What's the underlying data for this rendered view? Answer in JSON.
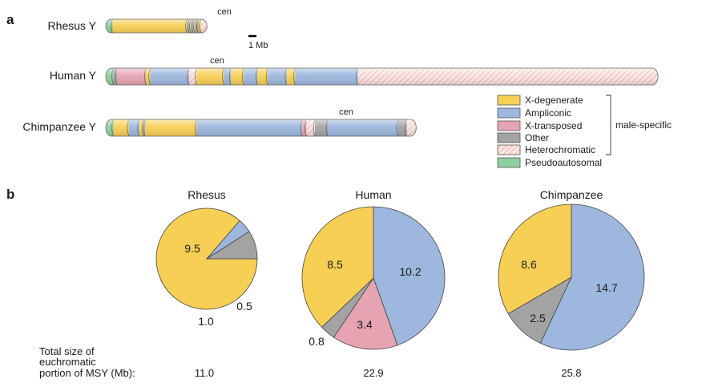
{
  "panel_labels": {
    "a": "a",
    "b": "b"
  },
  "chromosomes": [
    {
      "id": "rhesus",
      "label": "Rhesus Y",
      "cen_label": "cen",
      "segments": [
        {
          "type": "pseudoautosomal",
          "mb": 0.8
        },
        {
          "type": "x-degenerate",
          "mb": 8.7
        },
        {
          "type": "ampliconic",
          "mb": 0.25
        },
        {
          "type": "x-degenerate",
          "mb": 0.2
        },
        {
          "type": "ampliconic",
          "mb": 0.25
        },
        {
          "type": "x-degenerate",
          "mb": 0.2
        },
        {
          "type": "other",
          "mb": 0.4
        },
        {
          "type": "x-degenerate",
          "mb": 0.3
        },
        {
          "type": "heterochromatic",
          "mb": 0.7
        }
      ]
    },
    {
      "id": "human",
      "label": "Human Y",
      "cen_label": "cen",
      "segments": [
        {
          "type": "pseudoautosomal",
          "mb": 0.9
        },
        {
          "type": "other",
          "mb": 0.4
        },
        {
          "type": "x-transposed",
          "mb": 3.4
        },
        {
          "type": "x-degenerate",
          "mb": 0.5
        },
        {
          "type": "ampliconic",
          "mb": 4.5
        },
        {
          "type": "heterochromatic",
          "mb": 0.9
        },
        {
          "type": "x-degenerate",
          "mb": 3.2
        },
        {
          "type": "ampliconic",
          "mb": 0.8
        },
        {
          "type": "x-degenerate",
          "mb": 1.5
        },
        {
          "type": "ampliconic",
          "mb": 1.6
        },
        {
          "type": "x-degenerate",
          "mb": 1.2
        },
        {
          "type": "ampliconic",
          "mb": 2.2
        },
        {
          "type": "x-degenerate",
          "mb": 1.0
        },
        {
          "type": "ampliconic",
          "mb": 7.3
        },
        {
          "type": "heterochromatic",
          "mb": 35.0
        }
      ]
    },
    {
      "id": "chimpanzee",
      "label": "Chimpanzee Y",
      "cen_label": "cen",
      "segments": [
        {
          "type": "pseudoautosomal",
          "mb": 0.9
        },
        {
          "type": "x-degenerate",
          "mb": 1.8
        },
        {
          "type": "ampliconic",
          "mb": 1.2
        },
        {
          "type": "x-degenerate",
          "mb": 0.5
        },
        {
          "type": "ampliconic",
          "mb": 0.2
        },
        {
          "type": "x-degenerate",
          "mb": 6.0
        },
        {
          "type": "ampliconic",
          "mb": 12.3
        },
        {
          "type": "x-transposed",
          "mb": 0.5
        },
        {
          "type": "heterochromatic",
          "mb": 1.0
        },
        {
          "type": "other",
          "mb": 1.5
        },
        {
          "type": "ampliconic",
          "mb": 8.2
        },
        {
          "type": "other",
          "mb": 1.0
        },
        {
          "type": "heterochromatic",
          "mb": 1.1
        }
      ]
    }
  ],
  "scale_bar_label": "1 Mb",
  "legend": {
    "items": [
      {
        "type": "x-degenerate",
        "label": "X-degenerate"
      },
      {
        "type": "ampliconic",
        "label": "Ampliconic"
      },
      {
        "type": "x-transposed",
        "label": "X-transposed"
      },
      {
        "type": "other",
        "label": "Other"
      },
      {
        "type": "heterochromatic",
        "label": "Heterochromatic"
      },
      {
        "type": "pseudoautosomal",
        "label": "Pseudoautosomal"
      }
    ],
    "bracket_label": "male-specific"
  },
  "colors": {
    "x-degenerate": "#f7cf55",
    "ampliconic": "#9db7de",
    "x-transposed": "#e6a4b2",
    "other": "#a3a3a3",
    "heterochromatic": "#f6cfca",
    "pseudoautosomal": "#8fcf9d"
  },
  "chart_data": [
    {
      "type": "pie",
      "title": "Rhesus",
      "slices": [
        {
          "category": "x-degenerate",
          "value": 9.5,
          "label": "9.5"
        },
        {
          "category": "ampliconic",
          "value": 0.5,
          "label": "0.5"
        },
        {
          "category": "other",
          "value": 1.0,
          "label": "1.0"
        }
      ],
      "total_label": "11.0"
    },
    {
      "type": "pie",
      "title": "Human",
      "slices": [
        {
          "category": "ampliconic",
          "value": 10.2,
          "label": "10.2"
        },
        {
          "category": "x-transposed",
          "value": 3.4,
          "label": "3.4"
        },
        {
          "category": "other",
          "value": 0.8,
          "label": "0.8"
        },
        {
          "category": "x-degenerate",
          "value": 8.5,
          "label": "8.5"
        }
      ],
      "total_label": "22.9"
    },
    {
      "type": "pie",
      "title": "Chimpanzee",
      "slices": [
        {
          "category": "ampliconic",
          "value": 14.7,
          "label": "14.7"
        },
        {
          "category": "other",
          "value": 2.5,
          "label": "2.5"
        },
        {
          "category": "x-degenerate",
          "value": 8.6,
          "label": "8.6"
        }
      ],
      "total_label": "25.8"
    }
  ],
  "total_size_label": [
    "Total size of",
    "euchromatic",
    "portion of MSY (Mb):"
  ]
}
